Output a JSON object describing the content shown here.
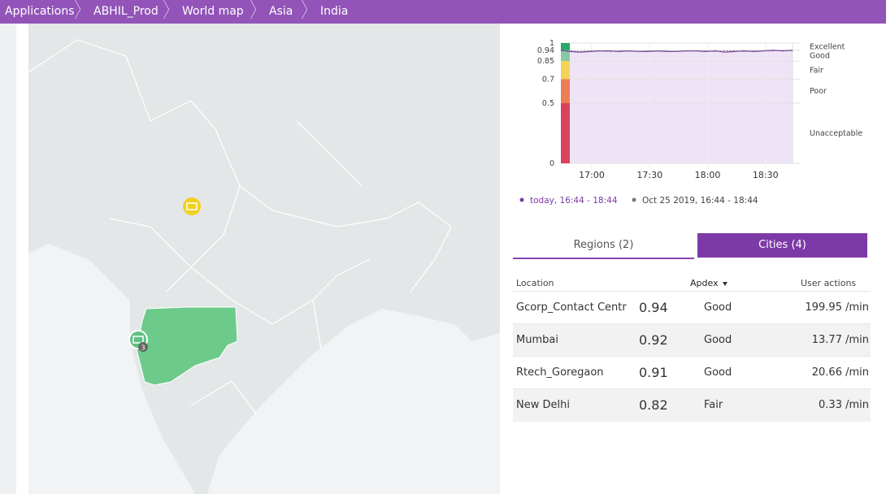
{
  "breadcrumbs": [
    "Applications",
    "ABHIL_Prod",
    "World map",
    "Asia",
    "India"
  ],
  "map": {
    "cluster_count": 3
  },
  "chart_data": {
    "type": "line",
    "ylim": [
      0,
      1
    ],
    "yticks": [
      0,
      0.5,
      0.7,
      0.85,
      0.94,
      1
    ],
    "xlim": [
      "16:44",
      "18:44"
    ],
    "xticks": [
      "17:00",
      "17:30",
      "18:00",
      "18:30"
    ],
    "bands": [
      {
        "label": "Excellent",
        "from": 0.94,
        "to": 1,
        "color": "#2aa86a"
      },
      {
        "label": "Good",
        "from": 0.85,
        "to": 0.94,
        "color": "#86c9a4"
      },
      {
        "label": "Fair",
        "from": 0.7,
        "to": 0.85,
        "color": "#f5d35a"
      },
      {
        "label": "Poor",
        "from": 0.5,
        "to": 0.7,
        "color": "#ec7e55"
      },
      {
        "label": "Unacceptable",
        "from": 0,
        "to": 0.5,
        "color": "#d9415c"
      }
    ],
    "x": [
      "16:44",
      "16:49",
      "16:54",
      "16:59",
      "17:04",
      "17:09",
      "17:14",
      "17:19",
      "17:24",
      "17:29",
      "17:34",
      "17:39",
      "17:44",
      "17:49",
      "17:54",
      "17:59",
      "18:04",
      "18:09",
      "18:14",
      "18:19",
      "18:24",
      "18:29",
      "18:34",
      "18:39",
      "18:44"
    ],
    "series": [
      {
        "name": "today, 16:44 - 18:44",
        "color": "#7c3aa5",
        "values": [
          0.94,
          0.93,
          0.925,
          0.93,
          0.935,
          0.935,
          0.93,
          0.935,
          0.93,
          0.93,
          0.935,
          0.93,
          0.93,
          0.935,
          0.935,
          0.93,
          0.935,
          0.925,
          0.93,
          0.935,
          0.93,
          0.935,
          0.94,
          0.935,
          0.94
        ]
      },
      {
        "name": "Oct 25 2019, 16:44 - 18:44",
        "color": "#777777",
        "values": [
          0.935,
          0.935,
          0.93,
          0.935,
          0.935,
          0.93,
          0.935,
          0.935,
          0.93,
          0.935,
          0.935,
          0.935,
          0.93,
          0.935,
          0.935,
          0.935,
          0.93,
          0.935,
          0.935,
          0.93,
          0.935,
          0.935,
          0.935,
          0.94,
          0.935
        ]
      }
    ]
  },
  "tabs": [
    "Regions (2)",
    "Cities (4)"
  ],
  "table": {
    "columns": [
      "Location",
      "Apdex",
      "User actions"
    ],
    "rows": [
      [
        "Gcorp_Contact Centr",
        0.94,
        "Good",
        "199.95 /min"
      ],
      [
        "Mumbai",
        0.92,
        "Good",
        "13.77 /min"
      ],
      [
        "Rtech_Goregaon",
        0.91,
        "Good",
        "20.66 /min"
      ],
      [
        "New Delhi",
        0.82,
        "Fair",
        "0.33 /min"
      ]
    ]
  }
}
